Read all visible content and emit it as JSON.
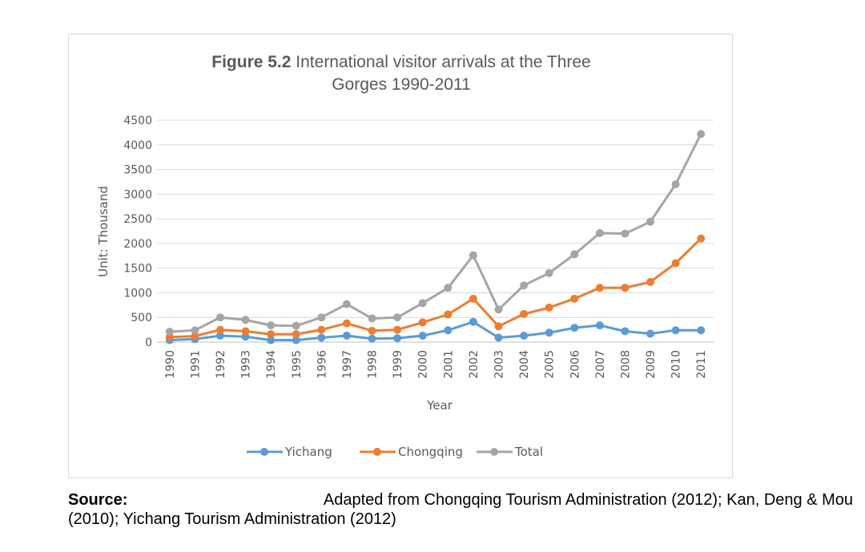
{
  "chart_data": {
    "type": "line",
    "title_bold": "Figure 5.2",
    "title_rest_line1": " International visitor arrivals at the Three",
    "title_line2": "Gorges 1990-2011",
    "xlabel": "Year",
    "ylabel": "Unit: Thousand",
    "ylim": [
      0,
      4500
    ],
    "yticks": [
      "4500",
      "4000",
      "3500",
      "3000",
      "2500",
      "2000",
      "1500",
      "1000",
      "500",
      "0"
    ],
    "ytick_values": [
      4500,
      4000,
      3500,
      3000,
      2500,
      2000,
      1500,
      1000,
      500,
      0
    ],
    "categories": [
      "1990",
      "1991",
      "1992",
      "1993",
      "1994",
      "1995",
      "1996",
      "1997",
      "1998",
      "1999",
      "2000",
      "2001",
      "2002",
      "2003",
      "2004",
      "2005",
      "2006",
      "2007",
      "2008",
      "2009",
      "2010",
      "2011"
    ],
    "grid": true,
    "legend_position": "bottom",
    "series": [
      {
        "name": "Yichang",
        "color": "#5b9bd5",
        "values": [
          40,
          60,
          130,
          110,
          40,
          40,
          90,
          130,
          70,
          80,
          130,
          240,
          410,
          90,
          130,
          190,
          290,
          340,
          220,
          170,
          240,
          240
        ]
      },
      {
        "name": "Chongqing",
        "color": "#ed7d31",
        "values": [
          100,
          120,
          250,
          220,
          160,
          160,
          250,
          380,
          230,
          250,
          400,
          560,
          880,
          320,
          570,
          700,
          880,
          1100,
          1100,
          1220,
          1600,
          2100
        ]
      },
      {
        "name": "Total",
        "color": "#a5a5a5",
        "values": [
          210,
          240,
          500,
          450,
          340,
          330,
          500,
          770,
          480,
          500,
          790,
          1100,
          1760,
          660,
          1150,
          1400,
          1780,
          2210,
          2200,
          2440,
          3200,
          4220
        ]
      }
    ]
  },
  "source": {
    "label": "Source:",
    "line1_rest": "Adapted from Chongqing Tourism Administration (2012); Kan, Deng & Mou",
    "line2": "(2010); Yichang Tourism Administration (2012)"
  }
}
